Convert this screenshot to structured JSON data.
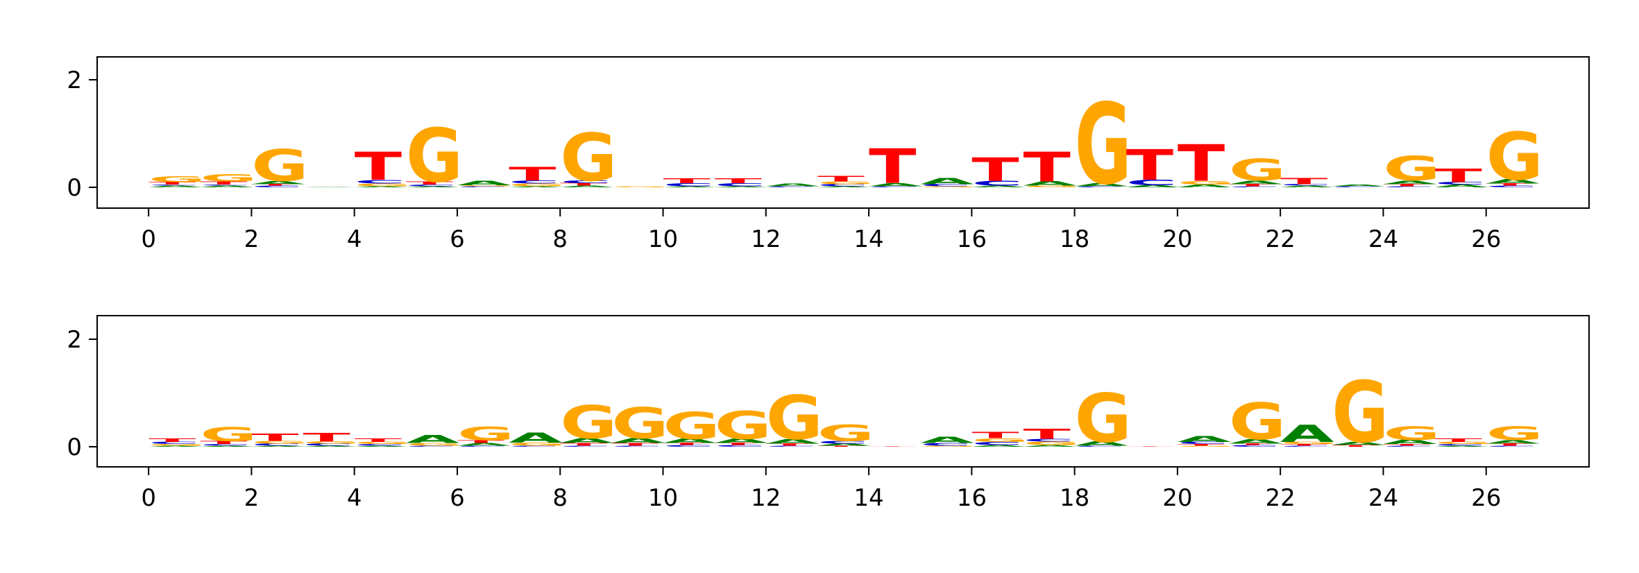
{
  "colors": {
    "A": "#008000",
    "C": "#0000cc",
    "G": "#ffa500",
    "T": "#ff0000"
  },
  "chart_data": [
    {
      "type": "sequence-logo",
      "title": "",
      "xlabel": "",
      "ylabel": "",
      "xlim": [
        -1,
        28
      ],
      "ylim": [
        0,
        2
      ],
      "xticks": [
        0,
        2,
        4,
        6,
        8,
        10,
        12,
        14,
        16,
        18,
        20,
        22,
        24,
        26
      ],
      "yticks": [
        0,
        2
      ],
      "positions": [
        {
          "x": 0,
          "stack": [
            [
              "A",
              0.03
            ],
            [
              "C",
              0.02
            ],
            [
              "T",
              0.05
            ],
            [
              "G",
              0.11
            ]
          ]
        },
        {
          "x": 1,
          "stack": [
            [
              "A",
              0.03
            ],
            [
              "C",
              0.02
            ],
            [
              "T",
              0.06
            ],
            [
              "G",
              0.13
            ]
          ]
        },
        {
          "x": 2,
          "stack": [
            [
              "C",
              0.03
            ],
            [
              "T",
              0.03
            ],
            [
              "A",
              0.06
            ],
            [
              "G",
              0.59
            ]
          ]
        },
        {
          "x": 3,
          "stack": [
            [
              "A",
              0.01
            ]
          ]
        },
        {
          "x": 4,
          "stack": [
            [
              "A",
              0.02
            ],
            [
              "G",
              0.05
            ],
            [
              "C",
              0.07
            ],
            [
              "T",
              0.52
            ]
          ]
        },
        {
          "x": 5,
          "stack": [
            [
              "A",
              0.02
            ],
            [
              "C",
              0.03
            ],
            [
              "T",
              0.06
            ],
            [
              "G",
              1.0
            ]
          ]
        },
        {
          "x": 6,
          "stack": [
            [
              "C",
              0.02
            ],
            [
              "G",
              0.02
            ],
            [
              "A",
              0.08
            ]
          ]
        },
        {
          "x": 7,
          "stack": [
            [
              "A",
              0.02
            ],
            [
              "G",
              0.05
            ],
            [
              "C",
              0.06
            ],
            [
              "T",
              0.25
            ]
          ]
        },
        {
          "x": 8,
          "stack": [
            [
              "A",
              0.03
            ],
            [
              "T",
              0.05
            ],
            [
              "C",
              0.05
            ],
            [
              "G",
              0.89
            ]
          ]
        },
        {
          "x": 9,
          "stack": [
            [
              "G",
              0.02
            ]
          ]
        },
        {
          "x": 10,
          "stack": [
            [
              "A",
              0.02
            ],
            [
              "C",
              0.06
            ],
            [
              "T",
              0.09
            ]
          ]
        },
        {
          "x": 11,
          "stack": [
            [
              "A",
              0.02
            ],
            [
              "C",
              0.06
            ],
            [
              "T",
              0.09
            ]
          ]
        },
        {
          "x": 12,
          "stack": [
            [
              "C",
              0.02
            ],
            [
              "A",
              0.05
            ]
          ]
        },
        {
          "x": 13,
          "stack": [
            [
              "A",
              0.02
            ],
            [
              "C",
              0.04
            ],
            [
              "G",
              0.05
            ],
            [
              "T",
              0.1
            ]
          ]
        },
        {
          "x": 14,
          "stack": [
            [
              "C",
              0.02
            ],
            [
              "A",
              0.06
            ],
            [
              "T",
              0.65
            ]
          ]
        },
        {
          "x": 15,
          "stack": [
            [
              "G",
              0.02
            ],
            [
              "C",
              0.04
            ],
            [
              "A",
              0.12
            ]
          ]
        },
        {
          "x": 16,
          "stack": [
            [
              "A",
              0.03
            ],
            [
              "C",
              0.09
            ],
            [
              "T",
              0.44
            ]
          ]
        },
        {
          "x": 17,
          "stack": [
            [
              "G",
              0.03
            ],
            [
              "A",
              0.08
            ],
            [
              "T",
              0.55
            ]
          ]
        },
        {
          "x": 18,
          "stack": [
            [
              "C",
              0.02
            ],
            [
              "A",
              0.06
            ],
            [
              "G",
              1.51
            ]
          ]
        },
        {
          "x": 19,
          "stack": [
            [
              "A",
              0.04
            ],
            [
              "C",
              0.1
            ],
            [
              "T",
              0.57
            ]
          ]
        },
        {
          "x": 20,
          "stack": [
            [
              "A",
              0.05
            ],
            [
              "G",
              0.07
            ],
            [
              "T",
              0.68
            ]
          ]
        },
        {
          "x": 21,
          "stack": [
            [
              "C",
              0.02
            ],
            [
              "T",
              0.04
            ],
            [
              "A",
              0.07
            ],
            [
              "G",
              0.4
            ]
          ]
        },
        {
          "x": 22,
          "stack": [
            [
              "A",
              0.03
            ],
            [
              "C",
              0.03
            ],
            [
              "T",
              0.12
            ]
          ]
        },
        {
          "x": 23,
          "stack": [
            [
              "C",
              0.02
            ],
            [
              "A",
              0.03
            ]
          ]
        },
        {
          "x": 24,
          "stack": [
            [
              "C",
              0.02
            ],
            [
              "T",
              0.04
            ],
            [
              "A",
              0.07
            ],
            [
              "G",
              0.45
            ]
          ]
        },
        {
          "x": 25,
          "stack": [
            [
              "A",
              0.05
            ],
            [
              "C",
              0.05
            ],
            [
              "T",
              0.25
            ]
          ]
        },
        {
          "x": 26,
          "stack": [
            [
              "C",
              0.03
            ],
            [
              "T",
              0.04
            ],
            [
              "A",
              0.08
            ],
            [
              "G",
              0.89
            ]
          ]
        }
      ]
    },
    {
      "type": "sequence-logo",
      "title": "",
      "xlabel": "",
      "ylabel": "",
      "xlim": [
        -1,
        28
      ],
      "ylim": [
        0,
        2
      ],
      "xticks": [
        0,
        2,
        4,
        6,
        8,
        10,
        12,
        14,
        16,
        18,
        20,
        22,
        24,
        26
      ],
      "yticks": [
        0,
        2
      ],
      "positions": [
        {
          "x": 0,
          "stack": [
            [
              "A",
              0.02
            ],
            [
              "G",
              0.03
            ],
            [
              "C",
              0.04
            ],
            [
              "T",
              0.07
            ]
          ]
        },
        {
          "x": 1,
          "stack": [
            [
              "A",
              0.02
            ],
            [
              "C",
              0.03
            ],
            [
              "T",
              0.06
            ],
            [
              "G",
              0.26
            ]
          ]
        },
        {
          "x": 2,
          "stack": [
            [
              "A",
              0.02
            ],
            [
              "C",
              0.04
            ],
            [
              "G",
              0.05
            ],
            [
              "T",
              0.13
            ]
          ]
        },
        {
          "x": 3,
          "stack": [
            [
              "A",
              0.02
            ],
            [
              "C",
              0.04
            ],
            [
              "G",
              0.04
            ],
            [
              "T",
              0.16
            ]
          ]
        },
        {
          "x": 4,
          "stack": [
            [
              "A",
              0.02
            ],
            [
              "C",
              0.03
            ],
            [
              "G",
              0.04
            ],
            [
              "T",
              0.07
            ]
          ]
        },
        {
          "x": 5,
          "stack": [
            [
              "C",
              0.02
            ],
            [
              "G",
              0.05
            ],
            [
              "A",
              0.15
            ]
          ]
        },
        {
          "x": 6,
          "stack": [
            [
              "C",
              0.02
            ],
            [
              "A",
              0.05
            ],
            [
              "T",
              0.05
            ],
            [
              "G",
              0.25
            ]
          ]
        },
        {
          "x": 7,
          "stack": [
            [
              "C",
              0.02
            ],
            [
              "G",
              0.06
            ],
            [
              "A",
              0.18
            ]
          ]
        },
        {
          "x": 8,
          "stack": [
            [
              "C",
              0.02
            ],
            [
              "T",
              0.05
            ],
            [
              "A",
              0.09
            ],
            [
              "G",
              0.61
            ]
          ]
        },
        {
          "x": 9,
          "stack": [
            [
              "C",
              0.02
            ],
            [
              "T",
              0.05
            ],
            [
              "A",
              0.09
            ],
            [
              "G",
              0.58
            ]
          ]
        },
        {
          "x": 10,
          "stack": [
            [
              "C",
              0.03
            ],
            [
              "T",
              0.04
            ],
            [
              "A",
              0.08
            ],
            [
              "G",
              0.5
            ]
          ]
        },
        {
          "x": 11,
          "stack": [
            [
              "C",
              0.03
            ],
            [
              "T",
              0.04
            ],
            [
              "A",
              0.08
            ],
            [
              "G",
              0.52
            ]
          ]
        },
        {
          "x": 12,
          "stack": [
            [
              "C",
              0.02
            ],
            [
              "T",
              0.04
            ],
            [
              "A",
              0.08
            ],
            [
              "G",
              0.82
            ]
          ]
        },
        {
          "x": 13,
          "stack": [
            [
              "T",
              0.02
            ],
            [
              "A",
              0.04
            ],
            [
              "C",
              0.05
            ],
            [
              "G",
              0.3
            ]
          ]
        },
        {
          "x": 14,
          "stack": [
            [
              "T",
              0.01
            ]
          ]
        },
        {
          "x": 15,
          "stack": [
            [
              "G",
              0.02
            ],
            [
              "C",
              0.05
            ],
            [
              "A",
              0.12
            ]
          ]
        },
        {
          "x": 16,
          "stack": [
            [
              "A",
              0.03
            ],
            [
              "C",
              0.06
            ],
            [
              "G",
              0.07
            ],
            [
              "T",
              0.12
            ]
          ]
        },
        {
          "x": 17,
          "stack": [
            [
              "A",
              0.03
            ],
            [
              "G",
              0.07
            ],
            [
              "C",
              0.05
            ],
            [
              "T",
              0.18
            ]
          ]
        },
        {
          "x": 18,
          "stack": [
            [
              "C",
              0.02
            ],
            [
              "A",
              0.08
            ],
            [
              "G",
              0.91
            ]
          ]
        },
        {
          "x": 19,
          "stack": [
            [
              "T",
              0.01
            ]
          ]
        },
        {
          "x": 20,
          "stack": [
            [
              "G",
              0.02
            ],
            [
              "T",
              0.03
            ],
            [
              "C",
              0.04
            ],
            [
              "A",
              0.11
            ]
          ]
        },
        {
          "x": 21,
          "stack": [
            [
              "C",
              0.03
            ],
            [
              "T",
              0.03
            ],
            [
              "A",
              0.08
            ],
            [
              "G",
              0.68
            ]
          ]
        },
        {
          "x": 22,
          "stack": [
            [
              "C",
              0.02
            ],
            [
              "T",
              0.03
            ],
            [
              "G",
              0.04
            ],
            [
              "A",
              0.32
            ]
          ]
        },
        {
          "x": 23,
          "stack": [
            [
              "T",
              0.03
            ],
            [
              "A",
              0.06
            ],
            [
              "G",
              1.14
            ]
          ]
        },
        {
          "x": 24,
          "stack": [
            [
              "C",
              0.02
            ],
            [
              "T",
              0.03
            ],
            [
              "A",
              0.08
            ],
            [
              "G",
              0.25
            ]
          ]
        },
        {
          "x": 25,
          "stack": [
            [
              "A",
              0.02
            ],
            [
              "C",
              0.03
            ],
            [
              "G",
              0.04
            ],
            [
              "T",
              0.07
            ]
          ]
        },
        {
          "x": 26,
          "stack": [
            [
              "C",
              0.02
            ],
            [
              "T",
              0.04
            ],
            [
              "A",
              0.07
            ],
            [
              "G",
              0.25
            ]
          ]
        }
      ]
    }
  ]
}
